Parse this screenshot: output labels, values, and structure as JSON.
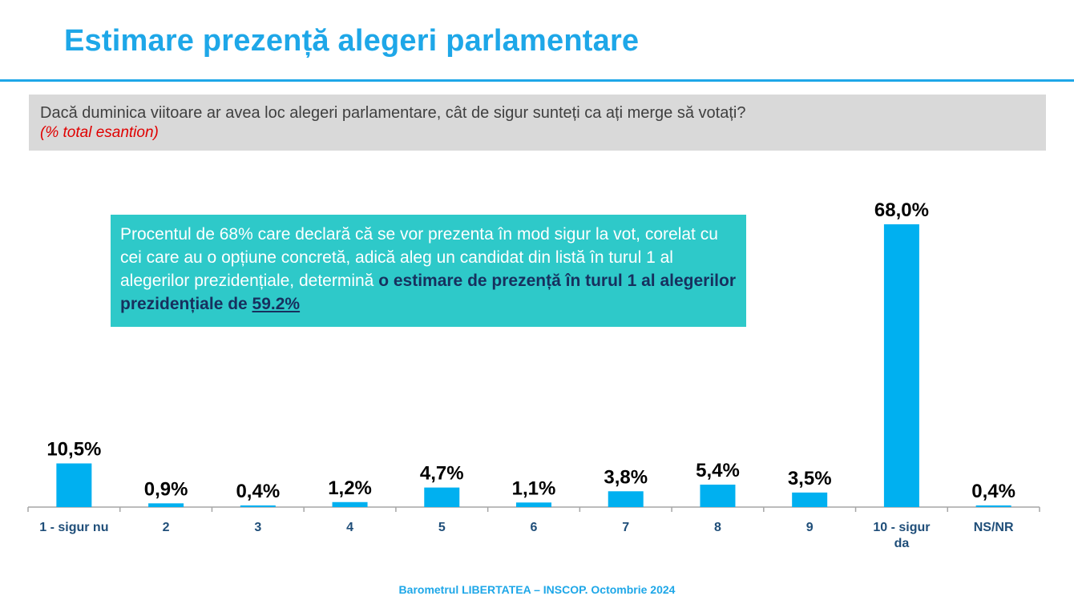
{
  "header": {
    "title": "Estimare prezență alegeri parlamentare"
  },
  "question": {
    "text": "Dacă duminica viitoare ar avea loc alegeri parlamentare, cât de sigur sunteți ca ați merge să votați?",
    "note": "(% total esantion)"
  },
  "callout": {
    "text_plain": "Procentul de 68% care declară că se vor prezenta în mod sigur la vot, corelat cu cei care au o opțiune concretă, adică aleg un candidat din listă în turul 1 al alegerilor prezidențiale, determină ",
    "text_emphasis": "o estimare de prezență în turul 1 al alegerilor prezidențiale  de ",
    "text_value": "59.2%"
  },
  "chart_data": {
    "type": "bar",
    "categories": [
      "1 - sigur nu",
      "2",
      "3",
      "4",
      "5",
      "6",
      "7",
      "8",
      "9",
      "10 - sigur da",
      "NS/NR"
    ],
    "values": [
      10.5,
      0.9,
      0.4,
      1.2,
      4.7,
      1.1,
      3.8,
      5.4,
      3.5,
      68.0,
      0.4
    ],
    "data_labels": [
      "10,5%",
      "0,9%",
      "0,4%",
      "1,2%",
      "4,7%",
      "1,1%",
      "3,8%",
      "5,4%",
      "3,5%",
      "68,0%",
      "0,4%"
    ],
    "ylim": [
      0,
      68.0
    ],
    "bar_color": "#00b0f0",
    "axis_label_color": "#1f4e79",
    "title": "",
    "xlabel": "",
    "ylabel": ""
  },
  "footer": {
    "text": "Barometrul LIBERTATEA – INSCOP. Octombrie 2024"
  },
  "colors": {
    "accent": "#1ea7e8",
    "callout_bg": "#2ec9c9",
    "callout_emphasis": "#17305e",
    "note_red": "#e00000"
  }
}
